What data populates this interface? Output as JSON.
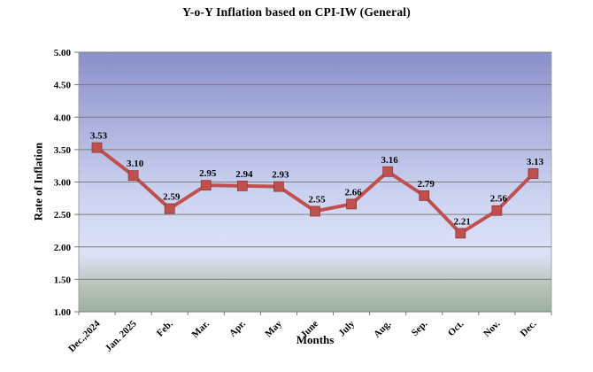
{
  "chart_data": {
    "type": "line",
    "title": "Y-o-Y Inflation based on CPI-IW (General)",
    "xlabel": "Months",
    "ylabel": "Rate of Inflation",
    "categories": [
      "Dec.,2024",
      "Jan. 2025",
      "Feb.",
      "Mar.",
      "Apr.",
      "May",
      "June",
      "July",
      "Aug.",
      "Sep.",
      "Oct.",
      "Nov.",
      "Dec."
    ],
    "series": [
      {
        "name": "Y-o-Y Inflation",
        "values": [
          3.53,
          3.1,
          2.59,
          2.95,
          2.94,
          2.93,
          2.55,
          2.66,
          3.16,
          2.79,
          2.21,
          2.56,
          3.13
        ]
      }
    ],
    "data_labels": [
      "3.53",
      "3.10",
      "2.59",
      "2.95",
      "2.94",
      "2.93",
      "2.55",
      "2.66",
      "3.16",
      "2.79",
      "2.21",
      "2.56",
      "3.13"
    ],
    "ylim": [
      1.0,
      5.0
    ],
    "ytick_step": 0.5,
    "ytick_labels": [
      "1.00",
      "1.50",
      "2.00",
      "2.50",
      "3.00",
      "3.50",
      "4.00",
      "4.50",
      "5.00"
    ],
    "grid": true,
    "legend": "none",
    "marker": "square",
    "colors": {
      "line": "#c0504d",
      "marker_fill": "#c0504d",
      "marker_stroke": "#8e3a37",
      "gridline": "#7b7b7b",
      "plot_border": "#a3a3a3",
      "text": "#000000",
      "plot_gradient_stops": [
        "#8a90c9",
        "#ccd3f1",
        "#dde2f7",
        "#b7c3b8",
        "#9db19f"
      ]
    }
  }
}
